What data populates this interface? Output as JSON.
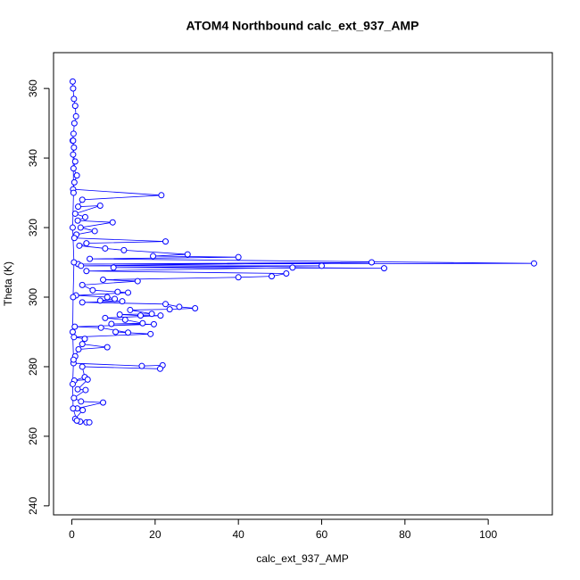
{
  "chart_data": {
    "type": "line_points",
    "title": "ATOM4 Northbound calc_ext_937_AMP",
    "x_label": "calc_ext_937_AMP",
    "y_label": "Theta (K)",
    "color": "#0000ff",
    "xlim": [
      -4.4,
      115.4
    ],
    "xticks": [
      0,
      20,
      40,
      60,
      80,
      100
    ],
    "ylim": [
      237.4,
      370.3
    ],
    "yticks": [
      240,
      260,
      280,
      300,
      320,
      340,
      360
    ],
    "x": [
      0.2,
      0.3,
      0.5,
      0.8,
      1,
      0.6,
      0.4,
      0.2,
      0.5,
      0.3,
      0.8,
      0.4,
      1.2,
      0.6,
      0.3,
      21.5,
      2.5,
      1.5,
      6.8,
      0.8,
      3.2,
      1.4,
      9.8,
      2.1,
      5.5,
      1.1,
      0.6,
      22.5,
      3.5,
      1.8,
      8,
      12.5,
      27.8,
      19.5,
      40,
      4.3,
      111,
      1.5,
      72,
      2.2,
      60,
      10,
      75,
      53,
      3.5,
      51.5,
      48,
      40,
      7.5,
      15.8,
      2.5,
      5,
      11,
      13.5,
      1,
      8.5,
      10.3,
      6.8,
      12.1,
      2.5,
      22.5,
      25.8,
      29.6,
      23.5,
      14,
      19.2,
      11.5,
      16.5,
      21.3,
      8,
      12.8,
      17,
      9.5,
      19.7,
      0.7,
      7,
      13.5,
      10.5,
      18.9,
      0.5,
      3.1,
      2.5,
      8.5,
      1.6,
      0.8,
      0.4,
      16.8,
      21.8,
      21.2,
      2.5,
      3.1,
      0.6,
      3.8,
      1.4,
      3.3,
      0.5,
      2.2,
      7.5,
      1.3,
      2.6,
      0.8,
      3.5,
      2,
      4.2,
      1.2,
      0.3,
      0.2,
      0.4,
      0.2,
      0.3,
      0.5,
      0.2,
      0.4,
      0.3
    ],
    "values": [
      362,
      360,
      357,
      355,
      352,
      350,
      347,
      345,
      343,
      341,
      339,
      337,
      335,
      333,
      331,
      329.3,
      328,
      326,
      326.3,
      324,
      323,
      322,
      321.5,
      320,
      319,
      318,
      317,
      316,
      315.5,
      314.8,
      314,
      313.5,
      312.3,
      311.8,
      311.5,
      311,
      309.7,
      309.5,
      310,
      309,
      309,
      308.5,
      308.3,
      308.5,
      307.5,
      306.8,
      306,
      305.7,
      305,
      304.6,
      303.5,
      302,
      301.5,
      301.3,
      300.5,
      300,
      299.5,
      299,
      298.8,
      298.5,
      298,
      297.2,
      296.8,
      296.5,
      296.3,
      295.2,
      295,
      294.7,
      294.7,
      294,
      293.5,
      292.5,
      292.3,
      292.2,
      291.5,
      291.2,
      289.8,
      290,
      289.4,
      288.5,
      288,
      286.5,
      285.6,
      285,
      283,
      281,
      280.2,
      280.4,
      279.4,
      280,
      277,
      276,
      276.3,
      273.5,
      273.3,
      271,
      270,
      269.7,
      268,
      267.5,
      265,
      264,
      264.2,
      264,
      264.5,
      268,
      275,
      282,
      290,
      300,
      310,
      320,
      330,
      345
    ]
  }
}
